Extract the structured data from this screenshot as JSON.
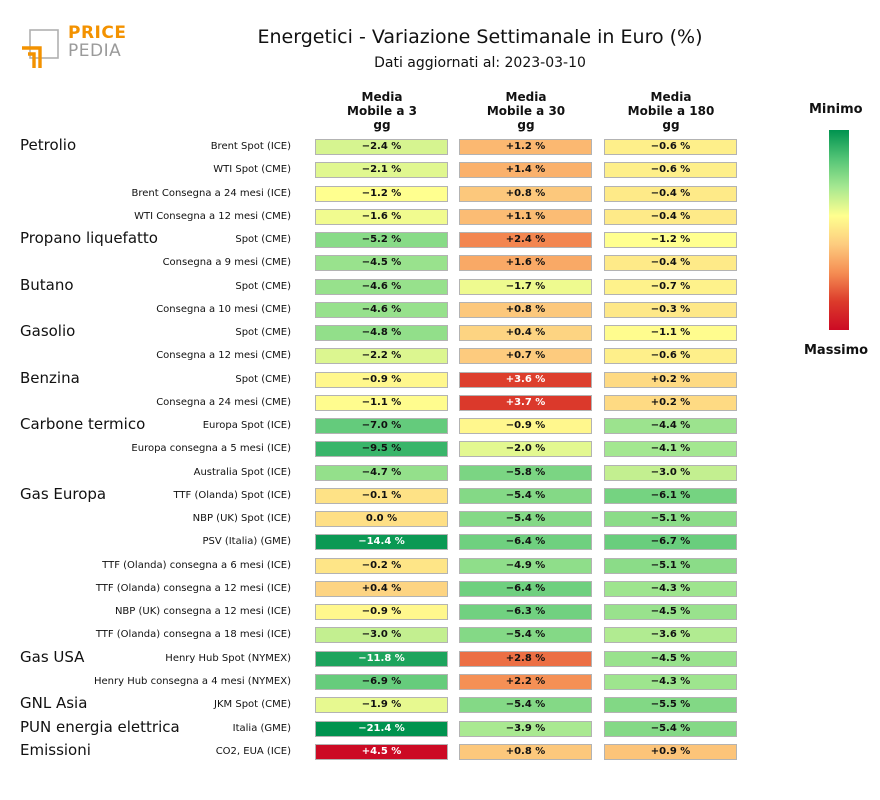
{
  "chart_data": {
    "type": "table",
    "title": "Energetici - Variazione Settimanale in Euro (%)",
    "subtitle": "Dati aggiornati al: 2023-03-10",
    "columns": [
      "Media\nMobile a 3\ngg",
      "Media\nMobile a 30\ngg",
      "Media\nMobile a 180\ngg"
    ],
    "legend": {
      "top": "Minimo",
      "bottom": "Massimo"
    },
    "colors": {
      "min": "#00934f",
      "mid": "#ffff8f",
      "max": "#cc0a24"
    },
    "value_range": [
      -21.4,
      4.5
    ],
    "rows": [
      {
        "group": "Petrolio",
        "label": "Brent Spot (ICE)",
        "values": [
          -2.4,
          1.2,
          -0.6
        ]
      },
      {
        "group": "",
        "label": "WTI Spot (CME)",
        "values": [
          -2.1,
          1.4,
          -0.6
        ]
      },
      {
        "group": "",
        "label": "Brent Consegna a 24 mesi (ICE)",
        "values": [
          -1.2,
          0.8,
          -0.4
        ]
      },
      {
        "group": "",
        "label": "WTI Consegna a 12 mesi (CME)",
        "values": [
          -1.6,
          1.1,
          -0.4
        ]
      },
      {
        "group": "Propano liquefatto",
        "label": "Spot (CME)",
        "values": [
          -5.2,
          2.4,
          -1.2
        ]
      },
      {
        "group": "",
        "label": "Consegna a 9 mesi (CME)",
        "values": [
          -4.5,
          1.6,
          -0.4
        ]
      },
      {
        "group": "Butano",
        "label": "Spot (CME)",
        "values": [
          -4.6,
          -1.7,
          -0.7
        ]
      },
      {
        "group": "",
        "label": "Consegna a 10 mesi (CME)",
        "values": [
          -4.6,
          0.8,
          -0.3
        ]
      },
      {
        "group": "Gasolio",
        "label": "Spot (CME)",
        "values": [
          -4.8,
          0.4,
          -1.1
        ]
      },
      {
        "group": "",
        "label": "Consegna a 12 mesi (CME)",
        "values": [
          -2.2,
          0.7,
          -0.6
        ]
      },
      {
        "group": "Benzina",
        "label": "Spot (CME)",
        "values": [
          -0.9,
          3.6,
          0.2
        ]
      },
      {
        "group": "",
        "label": "Consegna a 24 mesi (CME)",
        "values": [
          -1.1,
          3.7,
          0.2
        ]
      },
      {
        "group": "Carbone termico",
        "label": "Europa Spot (ICE)",
        "values": [
          -7.0,
          -0.9,
          -4.4
        ]
      },
      {
        "group": "",
        "label": "Europa consegna a 5 mesi (ICE)",
        "values": [
          -9.5,
          -2.0,
          -4.1
        ]
      },
      {
        "group": "",
        "label": "Australia Spot (ICE)",
        "values": [
          -4.7,
          -5.8,
          -3.0
        ]
      },
      {
        "group": "Gas Europa",
        "label": "TTF (Olanda) Spot (ICE)",
        "values": [
          -0.1,
          -5.4,
          -6.1
        ]
      },
      {
        "group": "",
        "label": "NBP (UK) Spot (ICE)",
        "values": [
          0.0,
          -5.4,
          -5.1
        ]
      },
      {
        "group": "",
        "label": "PSV (Italia) (GME)",
        "values": [
          -14.4,
          -6.4,
          -6.7
        ]
      },
      {
        "group": "",
        "label": "TTF (Olanda) consegna a 6 mesi (ICE)",
        "values": [
          -0.2,
          -4.9,
          -5.1
        ]
      },
      {
        "group": "",
        "label": "TTF (Olanda) consegna a 12 mesi (ICE)",
        "values": [
          0.4,
          -6.4,
          -4.3
        ]
      },
      {
        "group": "",
        "label": "NBP (UK) consegna a 12 mesi (ICE)",
        "values": [
          -0.9,
          -6.3,
          -4.5
        ]
      },
      {
        "group": "",
        "label": "TTF (Olanda) consegna a 18 mesi (ICE)",
        "values": [
          -3.0,
          -5.4,
          -3.6
        ]
      },
      {
        "group": "Gas USA",
        "label": "Henry Hub Spot (NYMEX)",
        "values": [
          -11.8,
          2.8,
          -4.5
        ]
      },
      {
        "group": "",
        "label": "Henry Hub consegna a 4 mesi (NYMEX)",
        "values": [
          -6.9,
          2.2,
          -4.3
        ]
      },
      {
        "group": "GNL Asia",
        "label": "JKM Spot (CME)",
        "values": [
          -1.9,
          -5.4,
          -5.5
        ]
      },
      {
        "group": "PUN energia elettrica",
        "label": "Italia (GME)",
        "values": [
          -21.4,
          -3.9,
          -5.4
        ]
      },
      {
        "group": "Emissioni",
        "label": "CO2, EUA (ICE)",
        "values": [
          4.5,
          0.8,
          0.9
        ]
      }
    ]
  },
  "logo": {
    "word1": "PRICE",
    "word2": "PEDIA"
  }
}
